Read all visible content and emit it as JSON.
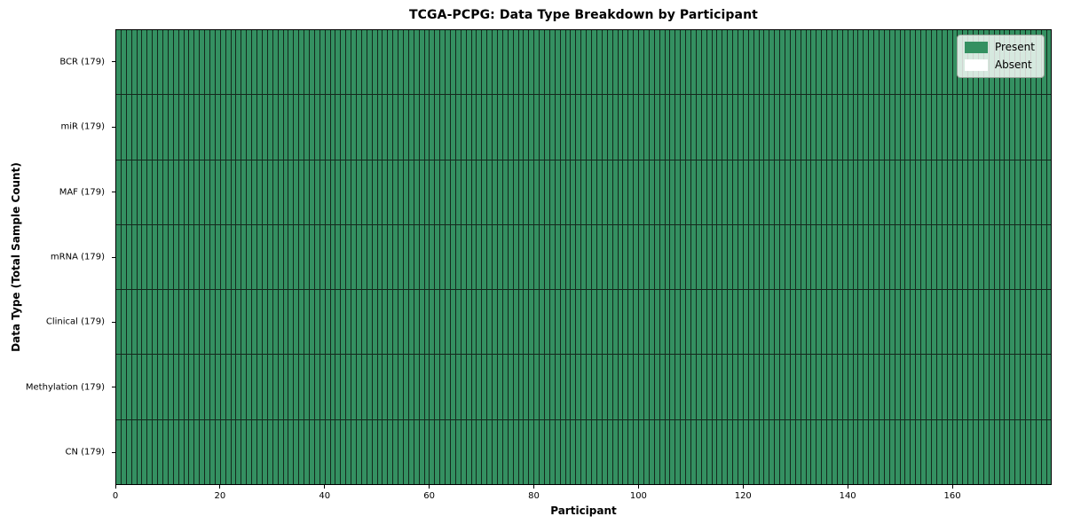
{
  "chart_data": {
    "type": "heatmap",
    "title": "TCGA-PCPG: Data Type Breakdown by Participant",
    "xlabel": "Participant",
    "ylabel": "Data Type (Total Sample Count)",
    "n_participants": 179,
    "xlim": [
      0,
      179
    ],
    "x_ticks": [
      0,
      20,
      40,
      60,
      80,
      100,
      120,
      140,
      160
    ],
    "rows": [
      {
        "label": "BCR (179)",
        "data_type": "BCR",
        "total_samples": 179,
        "present_count": 179
      },
      {
        "label": "miR (179)",
        "data_type": "miR",
        "total_samples": 179,
        "present_count": 179
      },
      {
        "label": "MAF (179)",
        "data_type": "MAF",
        "total_samples": 179,
        "present_count": 179
      },
      {
        "label": "mRNA (179)",
        "data_type": "mRNA",
        "total_samples": 179,
        "present_count": 179
      },
      {
        "label": "Clinical (179)",
        "data_type": "Clinical",
        "total_samples": 179,
        "present_count": 179
      },
      {
        "label": "Methylation (179)",
        "data_type": "Methylation",
        "total_samples": 179,
        "present_count": 179
      },
      {
        "label": "CN (179)",
        "data_type": "CN",
        "total_samples": 179,
        "present_count": 179
      }
    ],
    "legend": {
      "position": "upper right",
      "entries": [
        {
          "label": "Present",
          "color": "#349061"
        },
        {
          "label": "Absent",
          "color": "#ffffff"
        }
      ]
    },
    "colors": {
      "present": "#349061",
      "absent": "#ffffff",
      "cell_edge": "#14291d",
      "spine": "#000000",
      "background": "#ffffff"
    },
    "grid": "cell-edges"
  }
}
